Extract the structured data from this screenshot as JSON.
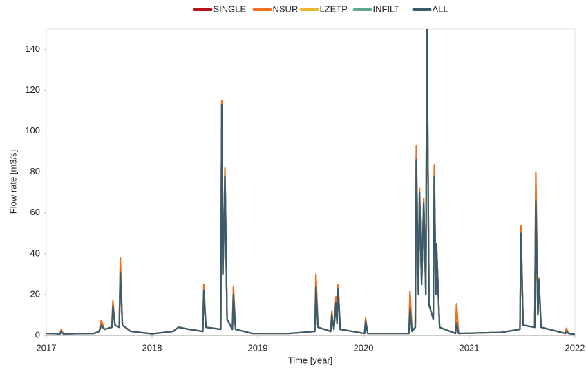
{
  "chart_data": {
    "type": "line",
    "x_label": "Time [year]",
    "y_label": "Flow rate [m3/s]",
    "xlim": [
      2017,
      2022
    ],
    "xticks": [
      2017,
      2018,
      2019,
      2020,
      2021,
      2022
    ],
    "ylim": [
      0,
      150
    ],
    "yticks": [
      0,
      20,
      40,
      60,
      80,
      100,
      120,
      140
    ],
    "legend": "top",
    "x": [
      2017.0,
      2017.13,
      2017.14,
      2017.16,
      2017.45,
      2017.5,
      2017.52,
      2017.55,
      2017.62,
      2017.63,
      2017.65,
      2017.69,
      2017.7,
      2017.72,
      2017.8,
      2018.0,
      2018.2,
      2018.25,
      2018.35,
      2018.48,
      2018.49,
      2018.51,
      2018.65,
      2018.66,
      2018.67,
      2018.69,
      2018.71,
      2018.76,
      2018.77,
      2018.79,
      2018.95,
      2019.3,
      2019.54,
      2019.55,
      2019.57,
      2019.69,
      2019.7,
      2019.72,
      2019.74,
      2019.75,
      2019.76,
      2019.78,
      2020.01,
      2020.02,
      2020.04,
      2020.43,
      2020.44,
      2020.46,
      2020.49,
      2020.5,
      2020.52,
      2020.53,
      2020.55,
      2020.57,
      2020.59,
      2020.6,
      2020.62,
      2020.66,
      2020.67,
      2020.685,
      2020.69,
      2020.72,
      2020.87,
      2020.88,
      2020.9,
      2021.3,
      2021.48,
      2021.49,
      2021.51,
      2021.62,
      2021.63,
      2021.65,
      2021.66,
      2021.68,
      2021.91,
      2021.92,
      2021.94,
      2022.0
    ],
    "series": [
      {
        "name": "SINGLE",
        "color": "#b5121b",
        "values": [
          1,
          0.8,
          2,
          0.8,
          1,
          2,
          5,
          3,
          4,
          14,
          5,
          4,
          31,
          5,
          2,
          0.8,
          2,
          4,
          3,
          2,
          22,
          4,
          3,
          113,
          30,
          78,
          8,
          3,
          20,
          3,
          1,
          1,
          2,
          24,
          4,
          2,
          10,
          3,
          16,
          6,
          23,
          3,
          1,
          7,
          1,
          1,
          13,
          2,
          4,
          86,
          20,
          70,
          25,
          65,
          20,
          155,
          15,
          8,
          78,
          20,
          45,
          4,
          1,
          6,
          1,
          1.5,
          3,
          50,
          5,
          4,
          66,
          10,
          27,
          4,
          1,
          2,
          1,
          0.5
        ]
      },
      {
        "name": "NSUR",
        "color": "#f07020",
        "values": [
          1,
          0.8,
          3,
          0.8,
          1,
          2,
          7.5,
          3,
          4,
          17,
          5,
          4,
          38,
          5,
          2,
          0.8,
          2,
          4,
          3,
          2,
          25,
          4,
          3,
          115,
          30,
          82,
          8,
          3,
          24,
          3,
          1,
          1,
          2,
          30,
          4,
          2,
          12,
          3,
          19,
          6,
          25,
          3,
          1,
          8.5,
          1,
          1,
          21.5,
          2,
          4,
          93,
          20,
          72,
          25,
          67,
          20,
          155,
          15,
          8,
          83.5,
          20,
          45,
          4,
          1,
          15.5,
          1,
          1.5,
          3,
          53.5,
          5,
          4,
          80,
          10,
          28,
          4,
          1,
          3.5,
          1,
          0.5
        ]
      },
      {
        "name": "LZETP",
        "color": "#e8b830",
        "values": [
          1,
          0.8,
          2,
          0.8,
          1,
          2,
          5,
          3,
          4,
          14,
          5,
          4,
          31,
          5,
          2,
          0.8,
          2,
          4,
          3,
          2,
          22,
          4,
          3,
          113,
          30,
          78,
          8,
          3,
          20,
          3,
          1,
          1,
          2,
          24,
          4,
          2,
          10,
          3,
          16,
          6,
          23,
          3,
          1,
          7,
          1,
          1,
          13,
          2,
          4,
          86,
          20,
          70,
          25,
          65,
          20,
          155,
          15,
          8,
          78,
          20,
          45,
          4,
          1,
          6,
          1,
          1.5,
          3,
          50,
          5,
          4,
          66,
          10,
          27,
          4,
          1,
          2,
          1,
          0.5
        ]
      },
      {
        "name": "INFILT",
        "color": "#5fa896",
        "values": [
          1,
          0.8,
          2,
          0.8,
          1,
          2,
          5,
          3,
          4,
          14,
          5,
          4,
          31,
          5,
          2,
          0.8,
          2,
          4,
          3,
          2,
          22,
          4,
          3,
          113,
          30,
          78,
          8,
          3,
          20,
          3,
          1,
          1,
          2,
          24,
          4,
          2,
          10,
          3,
          16,
          6,
          23,
          3,
          1,
          7,
          1,
          1,
          13,
          2,
          4,
          86,
          20,
          70,
          25,
          65,
          20,
          155,
          15,
          8,
          78,
          20,
          45,
          4,
          1,
          6,
          1,
          1.5,
          3,
          50,
          5,
          4,
          66,
          10,
          27,
          4,
          1,
          2,
          1,
          0.5
        ]
      },
      {
        "name": "ALL",
        "color": "#3b5a6c",
        "values": [
          1,
          0.8,
          2,
          0.8,
          1,
          2,
          5,
          3,
          4,
          14,
          5,
          4,
          31,
          5,
          2,
          0.8,
          2,
          4,
          3,
          2,
          22,
          4,
          3,
          113,
          30,
          78,
          8,
          3,
          20,
          3,
          1,
          1,
          2,
          24,
          4,
          2,
          10,
          3,
          16,
          6,
          23,
          3,
          1,
          7,
          1,
          1,
          13,
          2,
          4,
          86,
          20,
          70,
          25,
          65,
          20,
          155,
          15,
          8,
          78,
          20,
          45,
          4,
          1,
          6,
          1,
          1.5,
          3,
          50,
          5,
          4,
          66,
          10,
          27,
          4,
          1,
          2,
          1,
          0.5
        ]
      }
    ]
  }
}
